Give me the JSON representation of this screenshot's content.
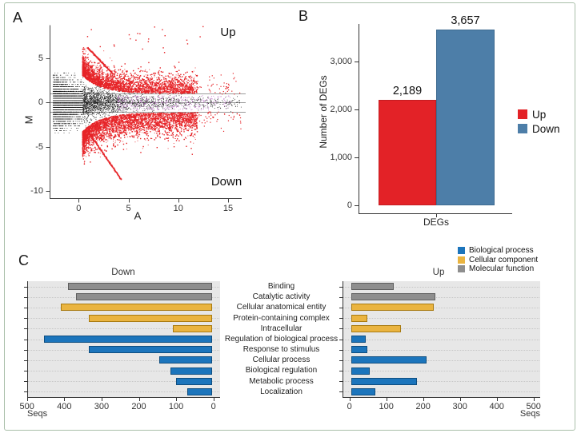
{
  "panels": {
    "a": {
      "label": "A"
    },
    "b": {
      "label": "B"
    },
    "c": {
      "label": "C"
    }
  },
  "chart_data": [
    {
      "id": "ma_plot",
      "type": "scatter",
      "title": "",
      "xlabel": "A",
      "ylabel": "M",
      "xlim": [
        -3,
        16.5
      ],
      "ylim": [
        -10.8,
        8.8
      ],
      "xticks": [
        0,
        5,
        10,
        15
      ],
      "yticks": [
        5,
        0,
        -5,
        -10
      ],
      "reference_lines_M": [
        1,
        0,
        -1
      ],
      "annotations": {
        "up": "Up",
        "down": "Down"
      },
      "colors": {
        "significant": "#e62428",
        "nonsignificant": "#1a1a1a",
        "borderline": "#b55fc0",
        "reference_line": "#9a9a9a",
        "axis": "#444444"
      },
      "point_groups": [
        {
          "name": "up-regulated",
          "color": "#e62428",
          "region": "M above ~+1 significance bound, A 0.5-16, densest A 1-6"
        },
        {
          "name": "down-regulated",
          "color": "#e62428",
          "region": "M below ~-1 significance bound, A 0.5-16, densest A 1-6"
        },
        {
          "name": "non-significant",
          "color": "#1a1a1a",
          "region": "central cloud |M| < ~3 narrowing with A"
        },
        {
          "name": "borderline",
          "color": "#b55fc0",
          "region": "|M| < 0.85 band, A 4-15"
        }
      ]
    },
    {
      "id": "deg_counts",
      "type": "bar",
      "categories": [
        "Up",
        "Down"
      ],
      "values": [
        2189,
        3657
      ],
      "value_labels": [
        "2,189",
        "3,657"
      ],
      "bar_colors": [
        "#e32227",
        "#4d7ea8"
      ],
      "bar_border_colors": [
        "#c41d22",
        "#3e6b90"
      ],
      "ylabel": "Number of DEGs",
      "xlabel": "DEGs",
      "ylim": [
        0,
        3800
      ],
      "yticks": [
        0,
        1000,
        2000,
        3000
      ],
      "ytick_labels": [
        "0",
        "1,000",
        "2,000",
        "3,000"
      ],
      "legend": [
        {
          "label": "Up",
          "color": "#e32227"
        },
        {
          "label": "Down",
          "color": "#4d7ea8"
        }
      ]
    },
    {
      "id": "go_annotation",
      "type": "bar",
      "orientation": "horizontal",
      "categories": [
        "Binding",
        "Catalytic activity",
        "Cellular anatomical entity",
        "Protein-containing complex",
        "Intracellular",
        "Regulation of biological process",
        "Response to stimulus",
        "Cellular process",
        "Biological regulation",
        "Metabolic process",
        "Localization"
      ],
      "category_groups": [
        "Molecular function",
        "Molecular function",
        "Cellular component",
        "Cellular component",
        "Cellular component",
        "Biological process",
        "Biological process",
        "Biological process",
        "Biological process",
        "Biological process",
        "Biological process"
      ],
      "series": [
        {
          "name": "Down",
          "values": [
            385,
            365,
            405,
            330,
            105,
            450,
            330,
            140,
            110,
            95,
            65
          ]
        },
        {
          "name": "Up",
          "values": [
            115,
            230,
            225,
            45,
            135,
            40,
            45,
            205,
            50,
            180,
            65
          ]
        }
      ],
      "xlabel": "Seqs",
      "xlim": [
        0,
        500
      ],
      "xticks": [
        0,
        100,
        200,
        300,
        400,
        500
      ],
      "legend": [
        {
          "label": "Biological process",
          "color": "#1c75bc"
        },
        {
          "label": "Cellular component",
          "color": "#eab440"
        },
        {
          "label": "Molecular function",
          "color": "#8e8e8e"
        }
      ],
      "group_colors": {
        "Biological process": "#1c75bc",
        "Cellular component": "#eab440",
        "Molecular function": "#8e8e8e"
      },
      "group_border_colors": {
        "Biological process": "#0f4e80",
        "Cellular component": "#a87a10",
        "Molecular function": "#5f5f5f"
      },
      "plot_background": "#e7e7e7",
      "gridline_color": "#c6c6c6"
    }
  ]
}
